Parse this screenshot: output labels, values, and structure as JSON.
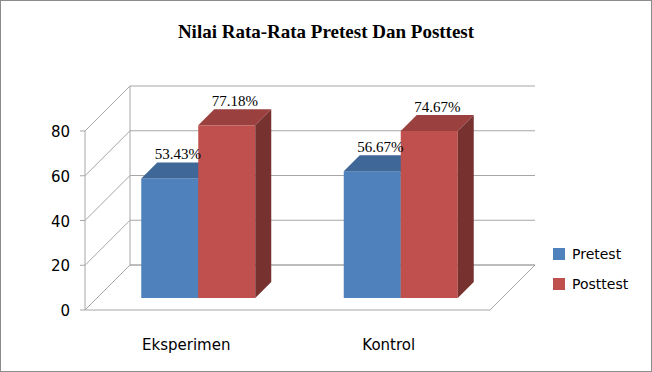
{
  "chart_data": {
    "type": "bar",
    "title": "Nilai Rata-Rata Pretest Dan Posttest",
    "categories": [
      "Eksperimen",
      "Kontrol"
    ],
    "series": [
      {
        "name": "Pretest",
        "color": "#4f81bd",
        "values": [
          53.43,
          56.67
        ],
        "value_labels": [
          "53.43%",
          "56.67%"
        ]
      },
      {
        "name": "Posttest",
        "color": "#c0504d",
        "values": [
          77.18,
          74.67
        ],
        "value_labels": [
          "77.18%",
          "74.67%"
        ]
      }
    ],
    "ylim": [
      0,
      80
    ],
    "yticks": [
      0,
      20,
      40,
      60,
      80
    ],
    "grid": true,
    "legend": "right",
    "data_labels": true
  }
}
